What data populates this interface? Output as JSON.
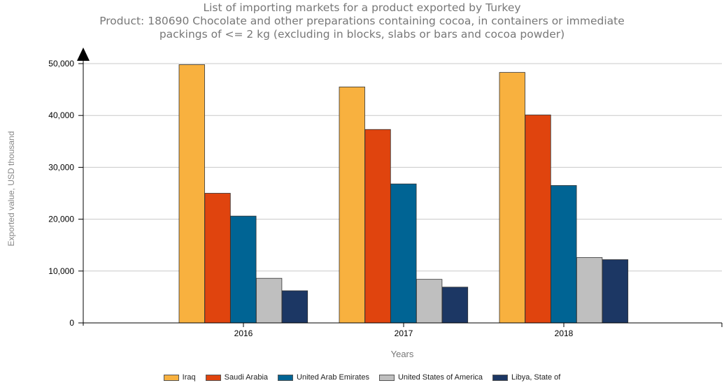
{
  "chart_data": {
    "type": "bar",
    "title": "List of importing markets for a product exported by Turkey",
    "subtitle": "Product: 180690 Chocolate and other preparations containing cocoa, in containers or immediate packings of <= 2 kg (excluding in blocks, slabs or bars and cocoa powder)",
    "subtitle_lines": [
      "Product: 180690 Chocolate and other preparations containing cocoa, in containers or immediate",
      "packings of <= 2 kg (excluding in blocks, slabs or bars and cocoa powder)"
    ],
    "xlabel": "Years",
    "ylabel": "Exported value, USD thousand",
    "categories": [
      "2016",
      "2017",
      "2018"
    ],
    "ylim": [
      0,
      50000
    ],
    "yticks": [
      0,
      10000,
      20000,
      30000,
      40000,
      50000
    ],
    "ytick_labels": [
      "0",
      "10,000",
      "20,000",
      "30,000",
      "40,000",
      "50,000"
    ],
    "grid": true,
    "legend_position": "bottom",
    "series": [
      {
        "name": "Iraq",
        "color": "#F8B13F",
        "values": [
          49800,
          45500,
          48300
        ]
      },
      {
        "name": "Saudi Arabia",
        "color": "#E0440E",
        "values": [
          25000,
          37300,
          40100
        ]
      },
      {
        "name": "United Arab Emirates",
        "color": "#006494",
        "values": [
          20600,
          26800,
          26500
        ]
      },
      {
        "name": "United States of America",
        "color": "#BFBFBF",
        "values": [
          8600,
          8400,
          12600
        ]
      },
      {
        "name": "Libya, State of",
        "color": "#1C3764",
        "values": [
          6200,
          6900,
          12200
        ]
      }
    ]
  }
}
